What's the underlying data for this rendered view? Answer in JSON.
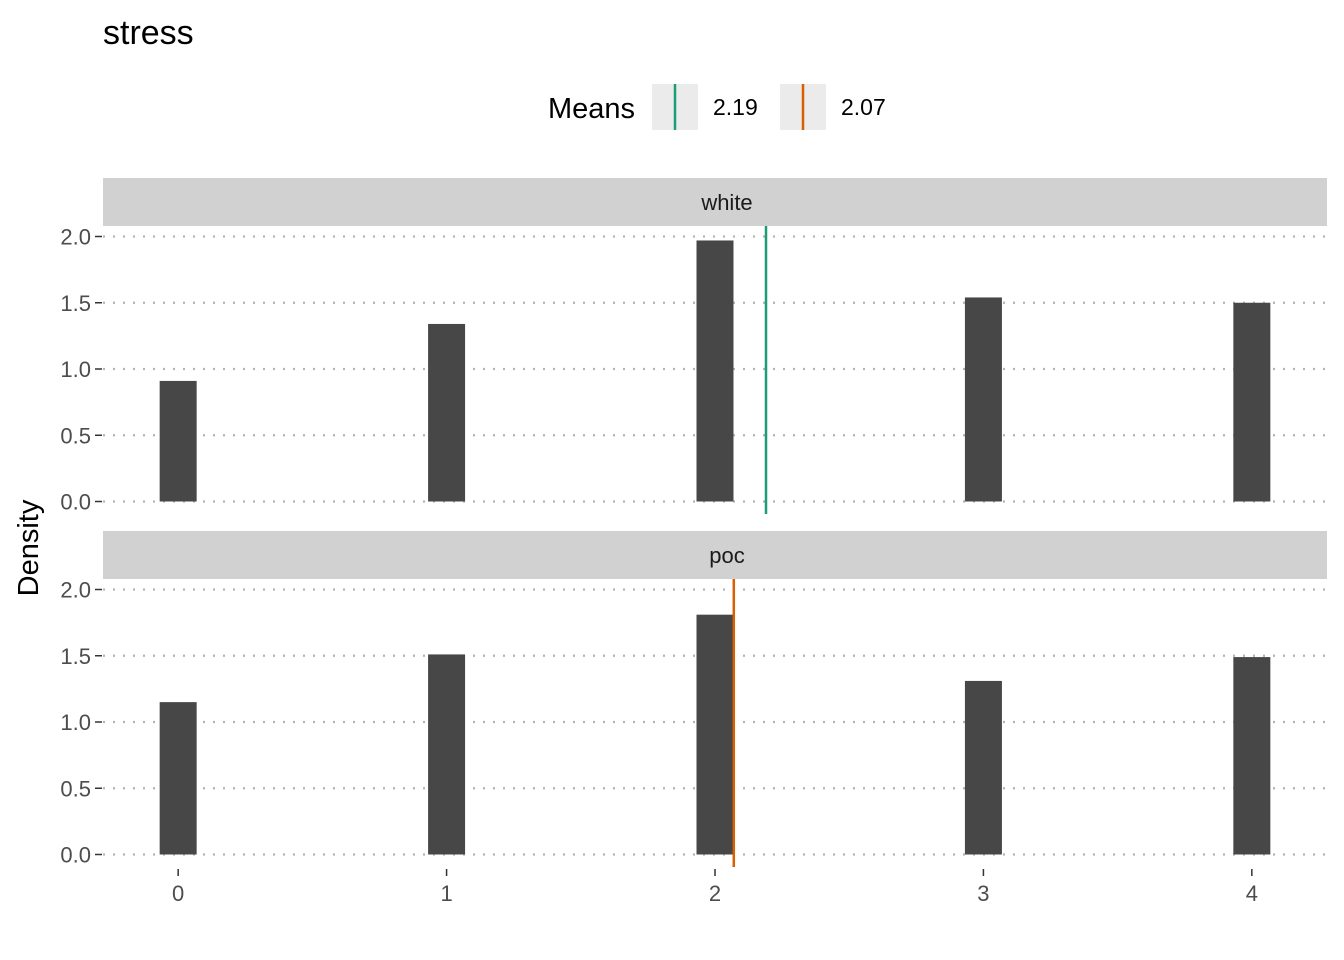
{
  "chart_data": {
    "type": "bar",
    "title": "stress",
    "ylabel": "Density",
    "xlabel": "",
    "x_ticks": [
      0,
      1,
      2,
      3,
      4
    ],
    "y_ticks": [
      0.0,
      0.5,
      1.0,
      1.5,
      2.0
    ],
    "y_tick_labels": [
      "0.0",
      "0.5",
      "1.0",
      "1.5",
      "2.0"
    ],
    "xlim": [
      -0.28,
      4.28
    ],
    "ylim": [
      0,
      2.05
    ],
    "grid": "horizontal dotted",
    "legend": {
      "title": "Means",
      "placement": "top",
      "entries": [
        {
          "label": "2.19",
          "color": "#1b9e77"
        },
        {
          "label": "2.07",
          "color": "#d95f02"
        }
      ]
    },
    "panels": [
      {
        "name": "white",
        "x": [
          0,
          1,
          2,
          3,
          4
        ],
        "values": [
          0.91,
          1.34,
          1.97,
          1.54,
          1.5
        ],
        "mean": 2.19,
        "mean_color": "#1b9e77"
      },
      {
        "name": "poc",
        "x": [
          0,
          1,
          2,
          3,
          4
        ],
        "values": [
          1.15,
          1.51,
          1.81,
          1.31,
          1.49
        ],
        "mean": 2.07,
        "mean_color": "#d95f02"
      }
    ],
    "bar_color": "#474747"
  }
}
